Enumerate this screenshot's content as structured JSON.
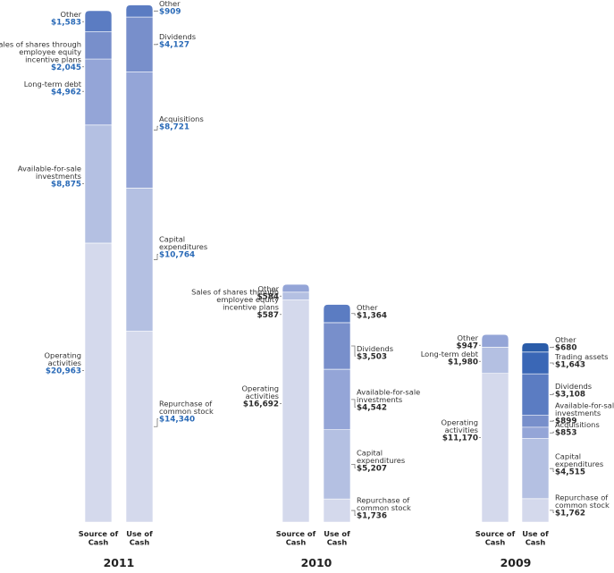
{
  "chart_data": {
    "type": "stacked-bar",
    "unit": "$ millions",
    "column_labels": {
      "source": [
        "Source of",
        "Cash"
      ],
      "use": [
        "Use of",
        "Cash"
      ]
    },
    "colors": [
      "#d4d9ec",
      "#b4c0e2",
      "#94a5d7",
      "#788fcb",
      "#5b7cc2",
      "#3a67b6",
      "#2a5ca9"
    ],
    "years": [
      {
        "year": "2011",
        "value_style": "blue",
        "source": [
          {
            "label": [
              "Operating",
              "activities"
            ],
            "value": 20963,
            "display": "$20,963"
          },
          {
            "label": [
              "Available-for-sale",
              "investments"
            ],
            "value": 8875,
            "display": "$8,875"
          },
          {
            "label": [
              "Long-term debt"
            ],
            "value": 4962,
            "display": "$4,962"
          },
          {
            "label": [
              "Sales of shares through",
              "employee equity",
              "incentive plans"
            ],
            "value": 2045,
            "display": "$2,045"
          },
          {
            "label": [
              "Other"
            ],
            "value": 1583,
            "display": "$1,583"
          }
        ],
        "use": [
          {
            "label": [
              "Repurchase of",
              "common stock"
            ],
            "value": 14340,
            "display": "$14,340"
          },
          {
            "label": [
              "Capital",
              "expenditures"
            ],
            "value": 10764,
            "display": "$10,764"
          },
          {
            "label": [
              "Acquisitions"
            ],
            "value": 8721,
            "display": "$8,721"
          },
          {
            "label": [
              "Dividends"
            ],
            "value": 4127,
            "display": "$4,127"
          },
          {
            "label": [
              "Other"
            ],
            "value": 909,
            "display": "$909"
          }
        ]
      },
      {
        "year": "2010",
        "value_style": "dark",
        "source": [
          {
            "label": [
              "Operating",
              "activities"
            ],
            "value": 16692,
            "display": "$16,692"
          },
          {
            "label": [
              "Sales of shares through",
              "employee equity",
              "incentive plans"
            ],
            "value": 587,
            "display": "$587"
          },
          {
            "label": [
              "Other"
            ],
            "value": 584,
            "display": "$584"
          }
        ],
        "use": [
          {
            "label": [
              "Repurchase of",
              "common stock"
            ],
            "value": 1736,
            "display": "$1,736"
          },
          {
            "label": [
              "Capital",
              "expenditures"
            ],
            "value": 5207,
            "display": "$5,207"
          },
          {
            "label": [
              "Available-for-sale",
              "investments"
            ],
            "value": 4542,
            "display": "$4,542"
          },
          {
            "label": [
              "Dividends"
            ],
            "value": 3503,
            "display": "$3,503"
          },
          {
            "label": [
              "Other"
            ],
            "value": 1364,
            "display": "$1,364"
          }
        ]
      },
      {
        "year": "2009",
        "value_style": "dark",
        "source": [
          {
            "label": [
              "Operating",
              "activities"
            ],
            "value": 11170,
            "display": "$11,170"
          },
          {
            "label": [
              "Long-term debt"
            ],
            "value": 1980,
            "display": "$1,980"
          },
          {
            "label": [
              "Other"
            ],
            "value": 947,
            "display": "$947"
          }
        ],
        "use": [
          {
            "label": [
              "Repurchase of",
              "common stock"
            ],
            "value": 1762,
            "display": "$1,762"
          },
          {
            "label": [
              "Capital",
              "expenditures"
            ],
            "value": 4515,
            "display": "$4,515"
          },
          {
            "label": [
              "Acquisitions"
            ],
            "value": 853,
            "display": "$853"
          },
          {
            "label": [
              "Available-for-sale",
              "investments"
            ],
            "value": 899,
            "display": "$899"
          },
          {
            "label": [
              "Dividends"
            ],
            "value": 3108,
            "display": "$3,108"
          },
          {
            "label": [
              "Trading assets"
            ],
            "value": 1643,
            "display": "$1,643"
          },
          {
            "label": [
              "Other"
            ],
            "value": 680,
            "display": "$680"
          }
        ]
      }
    ]
  }
}
